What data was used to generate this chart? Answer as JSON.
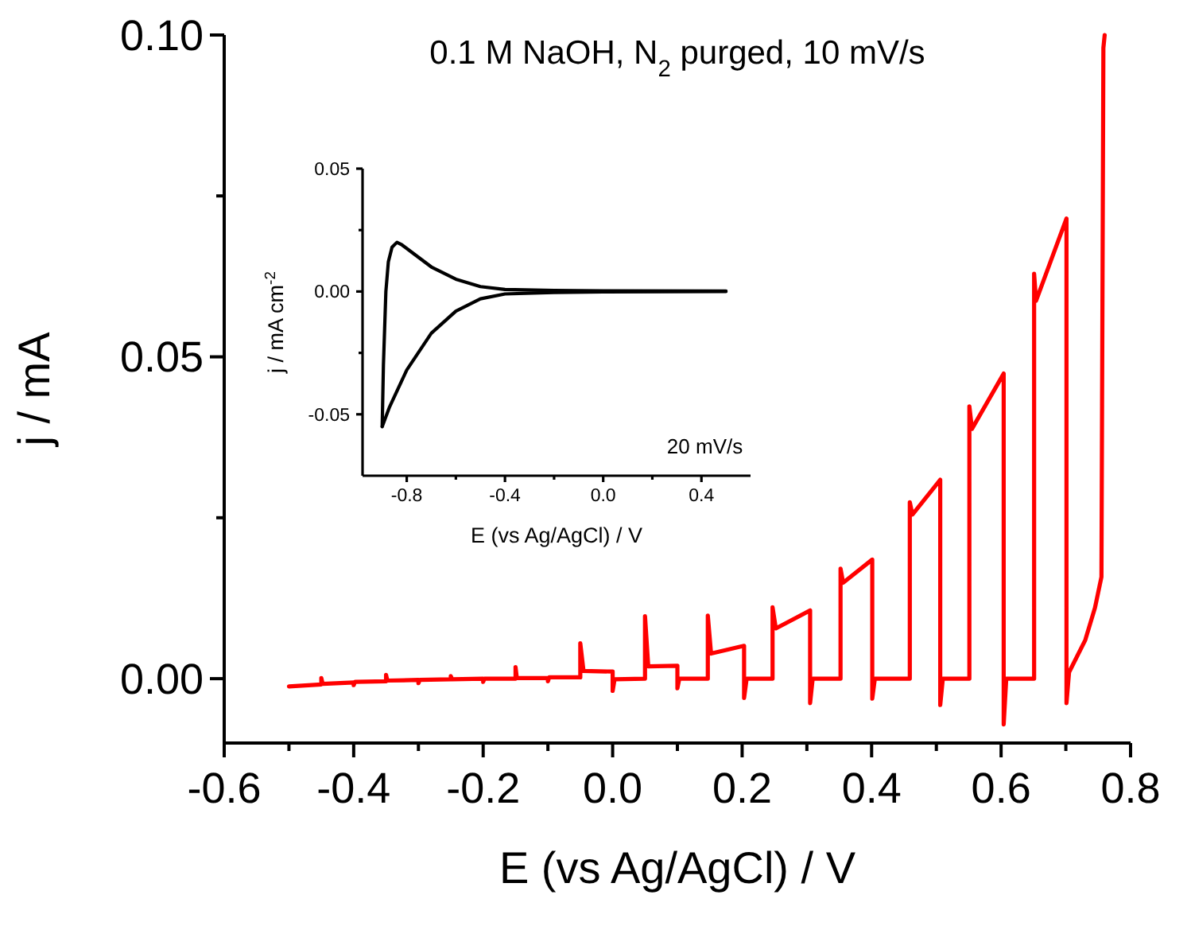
{
  "chart_data": [
    {
      "type": "line",
      "xlabel": "E (vs Ag/AgCl) / V",
      "ylabel": "j / mA",
      "annotations": [
        "0.1 M NaOH, N$_{2}$ purged, 10 mV/s"
      ],
      "xlim": [
        -0.6,
        0.8
      ],
      "ylim": [
        -0.01,
        0.1
      ],
      "xticks": [
        -0.6,
        {
          "value": -0.5,
          "label": null
        },
        -0.4,
        {
          "value": -0.3,
          "label": null
        },
        -0.2,
        {
          "value": -0.1,
          "label": null
        },
        {
          "value": 0,
          "label": "0.0"
        },
        {
          "value": 0.1,
          "label": null
        },
        0.2,
        {
          "value": 0.3,
          "label": null
        },
        0.4,
        {
          "value": 0.5,
          "label": null
        },
        0.6,
        {
          "value": 0.7,
          "label": null
        },
        0.8
      ],
      "yticks": [
        {
          "value": 0,
          "label": "0.00"
        },
        {
          "value": 0.025,
          "label": null
        },
        {
          "value": 0.05,
          "label": "0.05"
        },
        {
          "value": 0.075,
          "label": null
        },
        {
          "value": 0.1,
          "label": "0.10"
        }
      ],
      "series": [
        {
          "color": "#ff0000",
          "x": [
            -0.5,
            -0.45,
            -0.45,
            -0.448,
            -0.4,
            -0.4,
            -0.398,
            -0.35,
            -0.35,
            -0.348,
            -0.3,
            -0.3,
            -0.298,
            -0.25,
            -0.25,
            -0.248,
            -0.2,
            -0.2,
            -0.198,
            -0.15,
            -0.15,
            -0.148,
            -0.1,
            -0.1,
            -0.098,
            -0.05,
            -0.05,
            -0.045,
            0,
            0,
            0.003,
            0.05,
            0.05,
            0.055,
            0.1,
            0.1,
            0.103,
            0.147,
            0.147,
            0.152,
            0.203,
            0.203,
            0.207,
            0.247,
            0.247,
            0.252,
            0.305,
            0.305,
            0.309,
            0.352,
            0.352,
            0.356,
            0.401,
            0.401,
            0.405,
            0.459,
            0.459,
            0.463,
            0.506,
            0.506,
            0.51,
            0.551,
            0.551,
            0.555,
            0.604,
            0.604,
            0.608,
            0.651,
            0.651,
            0.654,
            0.701,
            0.701,
            0.705,
            0.73,
            0.745,
            0.755,
            0.758,
            0.76
          ],
          "values": [
            -0.0012,
            -0.0009,
            0.0001,
            -0.0008,
            -0.0006,
            -0.001,
            -0.0005,
            -0.0004,
            0.0006,
            -0.0003,
            -0.0002,
            -0.0007,
            -0.0002,
            -0.0001,
            0.0004,
            -0.0001,
            0,
            -0.0005,
            0,
            0,
            0.0018,
            0.0001,
            0.0001,
            -0.0004,
            0.0002,
            0.0002,
            0.0055,
            0.0012,
            0.0011,
            -0.0019,
            -0.0001,
            0,
            0.0097,
            0.0019,
            0.002,
            -0.0015,
            0,
            0,
            0.0098,
            0.0039,
            0.0051,
            -0.003,
            0,
            0,
            0.0111,
            0.0078,
            0.0106,
            -0.0038,
            0,
            0,
            0.0171,
            0.0149,
            0.0185,
            -0.0031,
            0,
            0,
            0.0274,
            0.0255,
            0.0309,
            -0.0041,
            0,
            0,
            0.0423,
            0.0388,
            0.0474,
            -0.0071,
            0,
            0,
            0.0629,
            0.0587,
            0.0715,
            -0.0038,
            0.001,
            0.006,
            0.011,
            0.0158,
            0.098,
            0.1
          ]
        }
      ]
    },
    {
      "type": "line",
      "xlabel": "E (vs Ag/AgCl) / V",
      "ylabel": "j / mA cm$^{-2}$",
      "annotations": [
        "20 mV/s"
      ],
      "xlim": [
        -0.98,
        0.6
      ],
      "ylim": [
        -0.075,
        0.05
      ],
      "xticks": [
        -0.8,
        {
          "value": -0.6,
          "label": null
        },
        -0.4,
        {
          "value": -0.2,
          "label": null
        },
        {
          "value": 0,
          "label": "0.0"
        },
        {
          "value": 0.2,
          "label": null
        },
        0.4
      ],
      "yticks": [
        {
          "value": -0.05,
          "label": "-0.05"
        },
        {
          "value": -0.025,
          "label": null
        },
        {
          "value": 0,
          "label": "0.00"
        },
        {
          "value": 0.025,
          "label": null
        },
        0.05
      ],
      "series": [
        {
          "color": "#000000",
          "x": [
            -0.9,
            -0.895,
            -0.885,
            -0.875,
            -0.86,
            -0.84,
            -0.82,
            -0.78,
            -0.7,
            -0.6,
            -0.5,
            -0.4,
            -0.2,
            0,
            0.5
          ],
          "values": [
            -0.055,
            -0.03,
            0.0,
            0.012,
            0.018,
            0.02,
            0.019,
            0.016,
            0.01,
            0.005,
            0.002,
            0.0008,
            0.0004,
            0.0003,
            0.0002
          ]
        },
        {
          "color": "#000000",
          "x": [
            -0.9,
            -0.87,
            -0.8,
            -0.7,
            -0.6,
            -0.5,
            -0.4,
            -0.2,
            0,
            0.5
          ],
          "values": [
            -0.055,
            -0.047,
            -0.032,
            -0.017,
            -0.008,
            -0.003,
            -0.001,
            -0.0004,
            -0.0002,
            0
          ]
        }
      ]
    }
  ]
}
